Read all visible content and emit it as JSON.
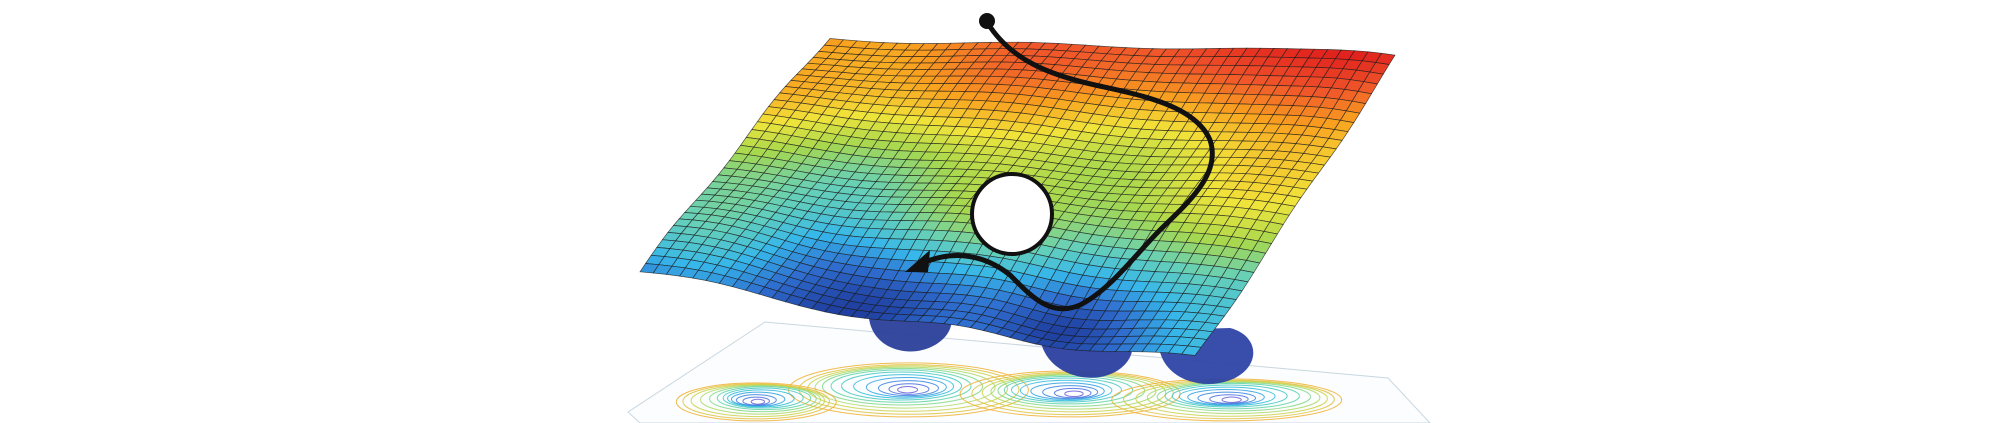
{
  "diagram": {
    "kind": "energy-landscape",
    "surface_colormap": [
      "#1f3fa0",
      "#2f6fd0",
      "#37b7ea",
      "#66d0b8",
      "#a6d84f",
      "#f1e43a",
      "#f9a21f",
      "#f0562a",
      "#e1221e"
    ],
    "mesh_line_color": "#1a1a1a",
    "contour_colormap": [
      "#8a4fd0",
      "#3a6fe0",
      "#25b8e0",
      "#5fd6a0",
      "#c6d84a",
      "#f1b030"
    ],
    "path_color": "#111111",
    "marker_fill": "#ffffff",
    "path_start": "filled-dot",
    "path_end": "arrowhead"
  }
}
